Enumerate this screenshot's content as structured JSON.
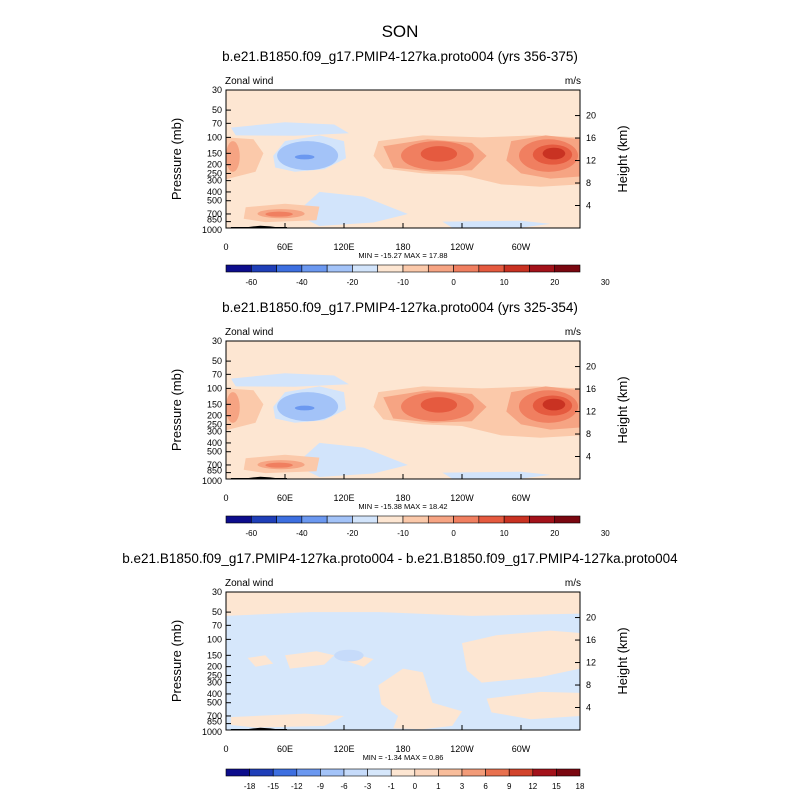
{
  "figure": {
    "main_title": "SON"
  },
  "colors": {
    "abs_scale": [
      "#0d0d8c",
      "#1f3fb8",
      "#3d6fe0",
      "#6b98f0",
      "#a3c3f8",
      "#d2e4fb",
      "#fde6d2",
      "#fbc9aa",
      "#f6a483",
      "#f07f60",
      "#e55a3f",
      "#c93222",
      "#a3121a",
      "#7a0710"
    ],
    "diff_scale": [
      "#0d0d8c",
      "#1f3fb8",
      "#3d6fe0",
      "#6b98f0",
      "#a3c3f8",
      "#c6dbfa",
      "#d6e7fb",
      "#fde6d2",
      "#fbd6bd",
      "#f8bd9b",
      "#f29b78",
      "#e8714f",
      "#d2442c",
      "#a3121a",
      "#7a0710"
    ]
  },
  "chart_data": [
    {
      "type": "heatmap",
      "title": "b.e21.B1850.f09_g17.PMIP4-127ka.proto004 (yrs 356-375)",
      "left_label": "Zonal wind",
      "right_label": "m/s",
      "ylabel": "Pressure (mb)",
      "ylabel_right": "Height (km)",
      "pressure_ticks": [
        "30",
        "50",
        "70",
        "100",
        "150",
        "200",
        "250",
        "300",
        "400",
        "500",
        "700",
        "850",
        "1000"
      ],
      "height_ticks": [
        "20",
        "16",
        "12",
        "8",
        "4"
      ],
      "x_ticks": [
        "0",
        "60E",
        "120E",
        "180",
        "120W",
        "60W"
      ],
      "min_max": "MIN = -15.27  MAX =  17.88",
      "colorbar": {
        "labels": [
          "-60",
          "-40",
          "-20",
          "-10",
          "0",
          "10",
          "20",
          "30"
        ],
        "levels": [
          -60,
          -50,
          -40,
          -30,
          -20,
          -15,
          -10,
          -5,
          0,
          5,
          10,
          15,
          20,
          25,
          30
        ]
      },
      "colormap": "abs_scale",
      "min": -15.27,
      "max": 17.88,
      "jets": [
        {
          "lon": 60,
          "p": 200,
          "value": -15.3,
          "extent": "60E–120E, 100–250 mb"
        },
        {
          "lon": 210,
          "p": 150,
          "value": 14.0,
          "extent": "150E–120W, 100–300 mb"
        },
        {
          "lon": 324,
          "p": 150,
          "value": 17.9,
          "extent": "90W–30W, 100–300 mb"
        },
        {
          "lon": 0,
          "p": 150,
          "value": 7.0,
          "extent": "0–20E, 100–250 mb"
        },
        {
          "lon": 42,
          "p": 700,
          "value": 6.0,
          "extent": "20E–80E, 600–850 mb"
        }
      ]
    },
    {
      "type": "heatmap",
      "title": "b.e21.B1850.f09_g17.PMIP4-127ka.proto004 (yrs 325-354)",
      "left_label": "Zonal wind",
      "right_label": "m/s",
      "ylabel": "Pressure (mb)",
      "ylabel_right": "Height (km)",
      "pressure_ticks": [
        "30",
        "50",
        "70",
        "100",
        "150",
        "200",
        "250",
        "300",
        "400",
        "500",
        "700",
        "850",
        "1000"
      ],
      "height_ticks": [
        "20",
        "16",
        "12",
        "8",
        "4"
      ],
      "x_ticks": [
        "0",
        "60E",
        "120E",
        "180",
        "120W",
        "60W"
      ],
      "min_max": "MIN = -15.38  MAX =  18.42",
      "colorbar": {
        "labels": [
          "-60",
          "-40",
          "-20",
          "-10",
          "0",
          "10",
          "20",
          "30"
        ],
        "levels": [
          -60,
          -50,
          -40,
          -30,
          -20,
          -15,
          -10,
          -5,
          0,
          5,
          10,
          15,
          20,
          25,
          30
        ]
      },
      "colormap": "abs_scale",
      "min": -15.38,
      "max": 18.42,
      "jets": [
        {
          "lon": 60,
          "p": 200,
          "value": -15.4,
          "extent": "60E–120E, 100–250 mb"
        },
        {
          "lon": 210,
          "p": 150,
          "value": 14.0,
          "extent": "150E–120W, 100–300 mb"
        },
        {
          "lon": 324,
          "p": 150,
          "value": 18.4,
          "extent": "90W–30W, 100–300 mb"
        },
        {
          "lon": 0,
          "p": 150,
          "value": 7.0,
          "extent": "0–20E, 100–250 mb"
        },
        {
          "lon": 42,
          "p": 700,
          "value": 6.5,
          "extent": "20E–80E, 600–850 mb"
        }
      ]
    },
    {
      "type": "heatmap",
      "title": "b.e21.B1850.f09_g17.PMIP4-127ka.proto004 - b.e21.B1850.f09_g17.PMIP4-127ka.proto004",
      "left_label": "Zonal wind",
      "right_label": "m/s",
      "ylabel": "Pressure (mb)",
      "ylabel_right": "Height (km)",
      "pressure_ticks": [
        "30",
        "50",
        "70",
        "100",
        "150",
        "200",
        "250",
        "300",
        "400",
        "500",
        "700",
        "850",
        "1000"
      ],
      "height_ticks": [
        "20",
        "16",
        "12",
        "8",
        "4"
      ],
      "x_ticks": [
        "0",
        "60E",
        "120E",
        "180",
        "120W",
        "60W"
      ],
      "min_max": "MIN = -1.34  MAX =  0.86",
      "colorbar": {
        "labels": [
          "-18",
          "-15",
          "-12",
          "-9",
          "-6",
          "-3",
          "-1",
          "0",
          "1",
          "3",
          "6",
          "9",
          "12",
          "15",
          "18"
        ],
        "levels": [
          -18,
          -15,
          -12,
          -9,
          -6,
          -3,
          -1,
          0,
          1,
          3,
          6,
          9,
          12,
          15,
          18
        ]
      },
      "colormap": "diff_scale",
      "min": -1.34,
      "max": 0.86,
      "regions": [
        {
          "sign": "negative",
          "extent": "most of domain, 50–1000 mb"
        },
        {
          "sign": "positive",
          "extent": "30–50 mb band, 180–150W mid levels, 90W–60W upper levels"
        }
      ]
    }
  ]
}
